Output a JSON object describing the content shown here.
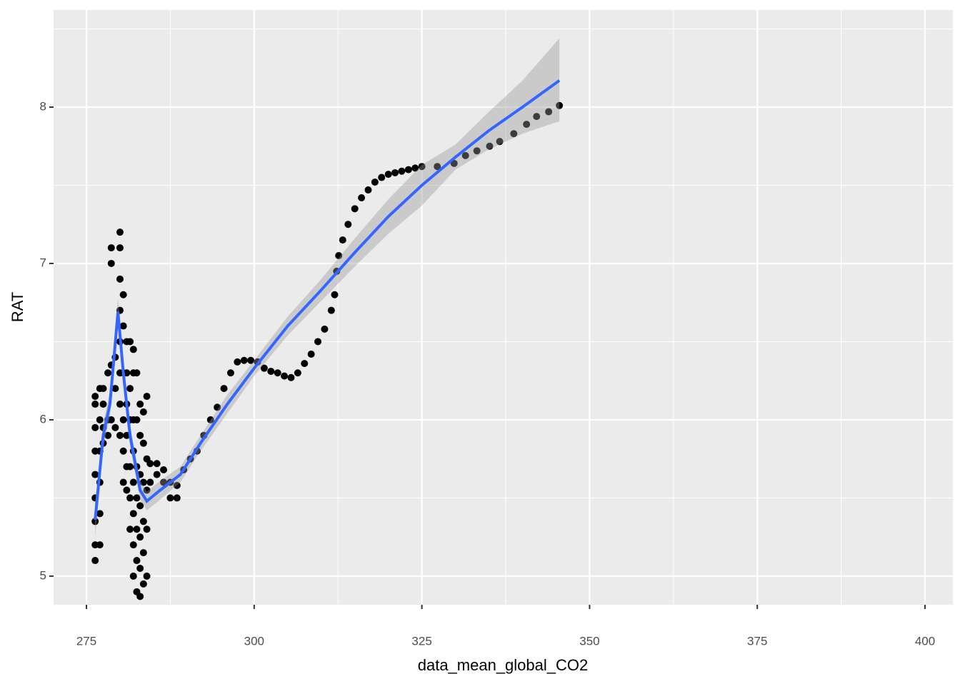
{
  "chart_data": {
    "type": "scatter",
    "x_label": "data_mean_global_CO2",
    "y_label": "RAT",
    "xlim": [
      270.1,
      404.15
    ],
    "ylim": [
      4.817,
      8.621
    ],
    "xticks": [
      275,
      300,
      325,
      350,
      375,
      400
    ],
    "yticks": [
      5,
      6,
      7,
      8
    ],
    "x_minor_grid": [
      287.5,
      312.5,
      337.5,
      362.5,
      387.5
    ],
    "y_minor_grid": [
      5.5,
      6.5,
      7.5,
      8.5
    ],
    "grid": true,
    "panel_color": "#ebebeb",
    "series": [
      {
        "color": "#000000",
        "x": [
          276.3,
          276.3,
          276.3,
          276.3,
          276.3,
          276.3,
          276.3,
          276.3,
          276.3,
          277.0,
          277.0,
          277.0,
          277.0,
          277.0,
          277.0,
          277.5,
          277.5,
          277.5,
          277.5,
          278.2,
          278.2,
          278.2,
          278.7,
          278.7,
          278.7,
          278.7,
          279.3,
          279.3,
          279.3,
          280.0,
          280.0,
          280.0,
          280.0,
          280.0,
          280.0,
          280.0,
          280.0,
          280.5,
          280.5,
          280.5,
          280.5,
          280.5,
          280.5,
          281.0,
          281.0,
          281.0,
          281.0,
          281.0,
          281.0,
          281.5,
          281.5,
          281.5,
          281.5,
          281.5,
          281.5,
          282.0,
          282.0,
          282.0,
          282.0,
          282.0,
          282.0,
          282.0,
          282.0,
          282.5,
          282.5,
          282.5,
          282.5,
          282.5,
          282.5,
          282.5,
          283.0,
          283.0,
          283.0,
          283.0,
          283.0,
          283.0,
          283.0,
          283.5,
          283.5,
          283.5,
          283.5,
          283.5,
          283.5,
          284.0,
          284.0,
          284.0,
          284.0,
          284.0,
          284.5,
          284.5,
          285.5,
          285.5,
          286.5,
          286.5,
          287.5,
          287.5,
          288.5,
          288.5,
          289.5,
          290.5,
          291.5,
          292.5,
          293.5,
          294.5,
          295.5,
          296.5,
          297.5,
          298.5,
          299.5,
          300.5,
          301.5,
          302.5,
          303.5,
          304.5,
          305.5,
          306.5,
          307.5,
          308.5,
          309.5,
          310.5,
          311.5,
          312.0,
          312.3,
          312.6,
          313.2,
          314.0,
          315.0,
          316.0,
          317.0,
          318.0,
          319.0,
          320.0,
          321.0,
          322.0,
          323.0,
          324.0,
          325.0,
          327.3,
          329.8,
          331.5,
          333.2,
          335.1,
          336.6,
          338.7,
          340.6,
          342.1,
          343.9,
          345.5
        ],
        "values": [
          5.1,
          5.2,
          5.35,
          5.5,
          5.65,
          5.8,
          5.95,
          6.1,
          6.15,
          5.2,
          5.4,
          5.6,
          5.8,
          6.0,
          6.2,
          5.85,
          5.95,
          6.1,
          6.2,
          5.9,
          6.0,
          6.3,
          6.0,
          6.35,
          7.0,
          7.1,
          5.95,
          6.2,
          6.4,
          5.9,
          6.1,
          6.3,
          6.5,
          6.7,
          6.9,
          7.1,
          7.2,
          5.6,
          5.8,
          6.0,
          6.3,
          6.6,
          6.8,
          5.55,
          5.7,
          5.9,
          6.1,
          6.3,
          6.5,
          5.3,
          5.5,
          5.7,
          6.0,
          6.2,
          6.5,
          5.0,
          5.2,
          5.4,
          5.6,
          5.8,
          6.0,
          6.3,
          6.45,
          4.9,
          5.1,
          5.3,
          5.5,
          5.7,
          6.0,
          6.3,
          4.87,
          5.05,
          5.25,
          5.45,
          5.65,
          5.9,
          6.1,
          4.95,
          5.15,
          5.35,
          5.6,
          5.85,
          6.05,
          5.0,
          5.3,
          5.55,
          5.75,
          6.15,
          5.6,
          5.72,
          5.65,
          5.72,
          5.6,
          5.68,
          5.5,
          5.6,
          5.5,
          5.58,
          5.68,
          5.75,
          5.8,
          5.9,
          6.0,
          6.08,
          6.2,
          6.3,
          6.37,
          6.38,
          6.38,
          6.37,
          6.33,
          6.31,
          6.3,
          6.28,
          6.27,
          6.3,
          6.36,
          6.42,
          6.5,
          6.58,
          6.7,
          6.8,
          6.95,
          7.05,
          7.15,
          7.25,
          7.35,
          7.42,
          7.47,
          7.52,
          7.55,
          7.57,
          7.58,
          7.59,
          7.6,
          7.61,
          7.62,
          7.62,
          7.64,
          7.69,
          7.72,
          7.75,
          7.78,
          7.83,
          7.89,
          7.94,
          7.97,
          8.01
        ]
      }
    ],
    "smooth": {
      "color": "#3366ff",
      "ribbon_color": "#999999",
      "x": [
        276.3,
        277.5,
        278.5,
        279.7,
        280.5,
        281.5,
        283,
        284,
        286,
        289,
        292,
        296,
        300,
        305,
        310,
        315,
        320,
        325,
        330,
        335,
        340,
        345.5
      ],
      "y": [
        5.36,
        5.9,
        6.1,
        6.69,
        6.3,
        5.9,
        5.55,
        5.48,
        5.55,
        5.65,
        5.85,
        6.1,
        6.33,
        6.6,
        6.83,
        7.07,
        7.3,
        7.5,
        7.68,
        7.85,
        8.0,
        8.17
      ],
      "ymin": [
        5.25,
        5.82,
        6.02,
        6.6,
        6.22,
        5.83,
        5.49,
        5.42,
        5.49,
        5.6,
        5.8,
        6.04,
        6.28,
        6.54,
        6.76,
        6.98,
        7.19,
        7.37,
        7.6,
        7.73,
        7.83,
        7.91
      ],
      "ymax": [
        5.47,
        5.98,
        6.18,
        6.78,
        6.38,
        5.97,
        5.61,
        5.54,
        5.61,
        5.7,
        5.9,
        6.16,
        6.38,
        6.66,
        6.9,
        7.16,
        7.41,
        7.63,
        7.76,
        7.97,
        8.17,
        8.44
      ]
    }
  }
}
